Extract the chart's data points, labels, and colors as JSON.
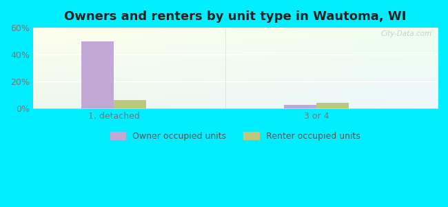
{
  "title": "Owners and renters by unit type in Wautoma, WI",
  "categories": [
    "1, detached",
    "3 or 4"
  ],
  "owner_values": [
    50.0,
    2.5
  ],
  "renter_values": [
    6.5,
    4.5
  ],
  "owner_color": "#c2a8d4",
  "renter_color": "#bec87a",
  "ylim": [
    0,
    60
  ],
  "yticks": [
    0,
    20,
    40,
    60
  ],
  "ytick_labels": [
    "0%",
    "20%",
    "40%",
    "60%"
  ],
  "bar_width": 0.32,
  "outer_bg": "#00eeff",
  "watermark": "City-Data.com",
  "legend_owner": "Owner occupied units",
  "legend_renter": "Renter occupied units",
  "title_fontsize": 13,
  "axis_fontsize": 9,
  "legend_fontsize": 9,
  "group_positions": [
    1.0,
    3.0
  ],
  "xlim": [
    0.2,
    4.2
  ]
}
